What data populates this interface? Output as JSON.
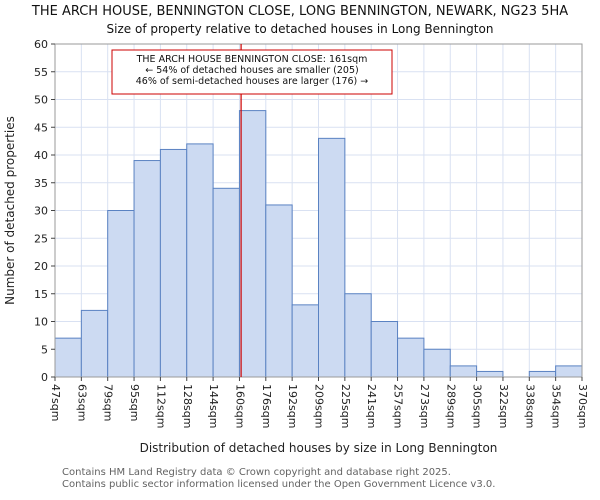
{
  "page": {
    "title_line1": "THE ARCH HOUSE, BENNINGTON CLOSE, LONG BENNINGTON, NEWARK, NG23 5HA",
    "title_line2": "Size of property relative to detached houses in Long Bennington"
  },
  "chart_data": {
    "type": "bar",
    "title": "THE ARCH HOUSE, BENNINGTON CLOSE, LONG BENNINGTON, NEWARK, NG23 5HA",
    "subtitle": "Size of property relative to detached houses in Long Bennington",
    "xlabel": "Distribution of detached houses by size in Long Bennington",
    "ylabel": "Number of detached properties",
    "bin_edges": [
      47,
      63,
      79,
      95,
      112,
      128,
      144,
      160,
      176,
      192,
      209,
      225,
      241,
      257,
      273,
      289,
      305,
      322,
      338,
      354,
      370
    ],
    "tick_labels": [
      "47sqm",
      "63sqm",
      "79sqm",
      "95sqm",
      "112sqm",
      "128sqm",
      "144sqm",
      "160sqm",
      "176sqm",
      "192sqm",
      "209sqm",
      "225sqm",
      "241sqm",
      "257sqm",
      "273sqm",
      "289sqm",
      "305sqm",
      "322sqm",
      "338sqm",
      "354sqm",
      "370sqm"
    ],
    "values": [
      7,
      12,
      30,
      39,
      41,
      42,
      34,
      48,
      31,
      13,
      43,
      15,
      10,
      7,
      5,
      2,
      1,
      0,
      1,
      2
    ],
    "ylim": [
      0,
      60
    ],
    "ytick_step": 5,
    "grid": true,
    "legend": null,
    "marker": {
      "value": 161,
      "color": "#cc0000"
    },
    "annotation": {
      "line1": "THE ARCH HOUSE BENNINGTON CLOSE: 161sqm",
      "line2": "← 54% of detached houses are smaller (205)",
      "line3": "46% of semi-detached houses are larger (176) →"
    },
    "colors": {
      "bar_fill": "#ccdaf2",
      "bar_stroke": "#5a82c2",
      "grid": "#d9e1f2",
      "axis_text": "#222222",
      "spine": "#9a9a9a",
      "marker": "#cc0000"
    }
  },
  "footer": {
    "line1": "Contains HM Land Registry data © Crown copyright and database right 2025.",
    "line2": "Contains public sector information licensed under the Open Government Licence v3.0."
  }
}
